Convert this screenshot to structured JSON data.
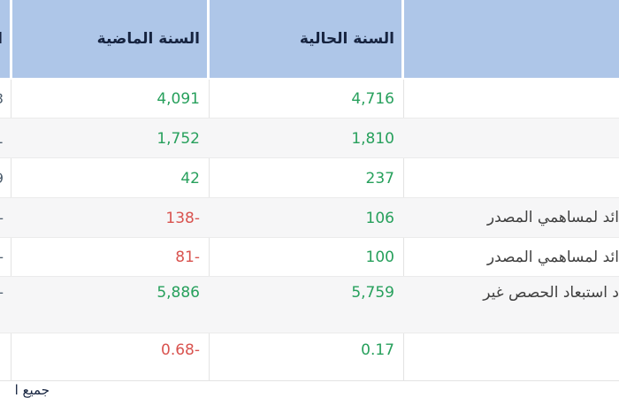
{
  "table": {
    "header": {
      "current_year": "السنة الحالية",
      "previous_year": "السنة الماضية",
      "label": "",
      "clipped_fragment": "ال"
    },
    "rows": [
      {
        "fragment": "3",
        "previous": "4,091",
        "current": "4,716",
        "label": ""
      },
      {
        "fragment": "1",
        "previous": "1,752",
        "current": "1,810",
        "label": ""
      },
      {
        "fragment": "9",
        "previous": "42",
        "current": "237",
        "label": ""
      },
      {
        "fragment": "-",
        "previous": "-138",
        "current": "106",
        "label": "ائد لمساهمي المصدر"
      },
      {
        "fragment": "-",
        "previous": "-81",
        "current": "100",
        "label": "ائد لمساهمي المصدر"
      },
      {
        "fragment": "-",
        "previous": "5,886",
        "current": "5,759",
        "label": "د استبعاد الحصص غير"
      },
      {
        "fragment": "",
        "previous": "-0.68",
        "current": "0.17",
        "label": ""
      }
    ]
  },
  "footer": {
    "text": "جميع ا"
  },
  "colors": {
    "header_bg": "#aec6e8",
    "positive": "#27a05c",
    "negative": "#d9534f"
  }
}
